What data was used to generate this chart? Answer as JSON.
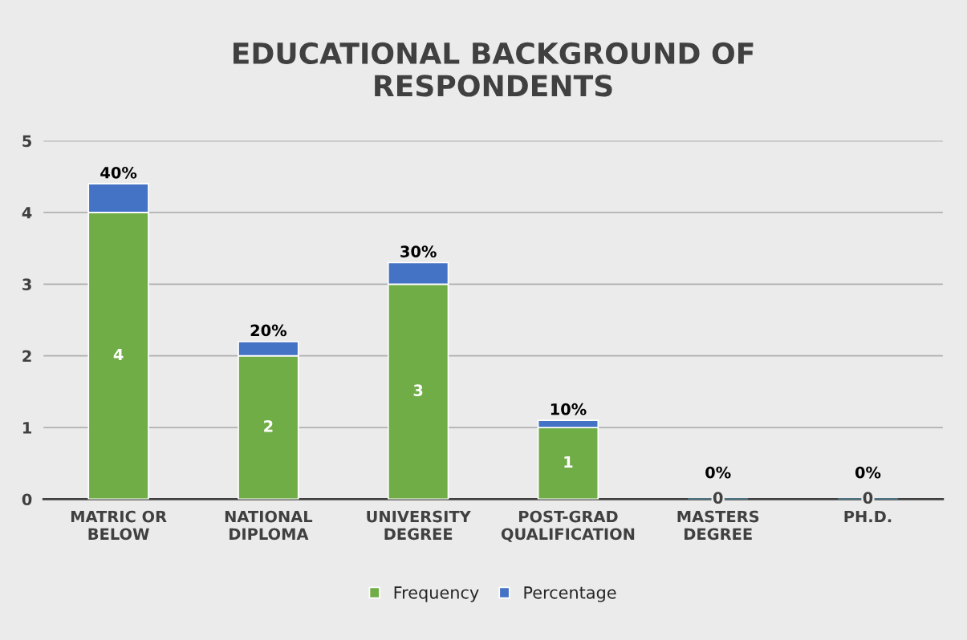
{
  "chart_data": {
    "type": "bar",
    "title": "EDUCATIONAL BACKGROUND OF\nRESPONDENTS",
    "categories": [
      "MATRIC OR\nBELOW",
      "NATIONAL\nDIPLOMA",
      "UNIVERSITY\nDEGREE",
      "POST-GRAD\nQUALIFICATION",
      "MASTERS\nDEGREE",
      "PH.D."
    ],
    "series": [
      {
        "name": "Frequency",
        "color": "#70ad47",
        "values": [
          4,
          2,
          3,
          1,
          0,
          0
        ],
        "value_labels": [
          "4",
          "2",
          "3",
          "1",
          "0",
          "0"
        ]
      },
      {
        "name": "Percentage",
        "color": "#4472c4",
        "values": [
          0.4,
          0.2,
          0.3,
          0.1,
          0,
          0
        ],
        "value_labels": [
          "40%",
          "20%",
          "30%",
          "10%",
          "0%",
          "0%"
        ]
      }
    ],
    "stacked": true,
    "ylim": [
      0,
      5
    ],
    "yticks": [
      0,
      1,
      2,
      3,
      4,
      5
    ],
    "grid": "y",
    "legend": "bottom"
  }
}
